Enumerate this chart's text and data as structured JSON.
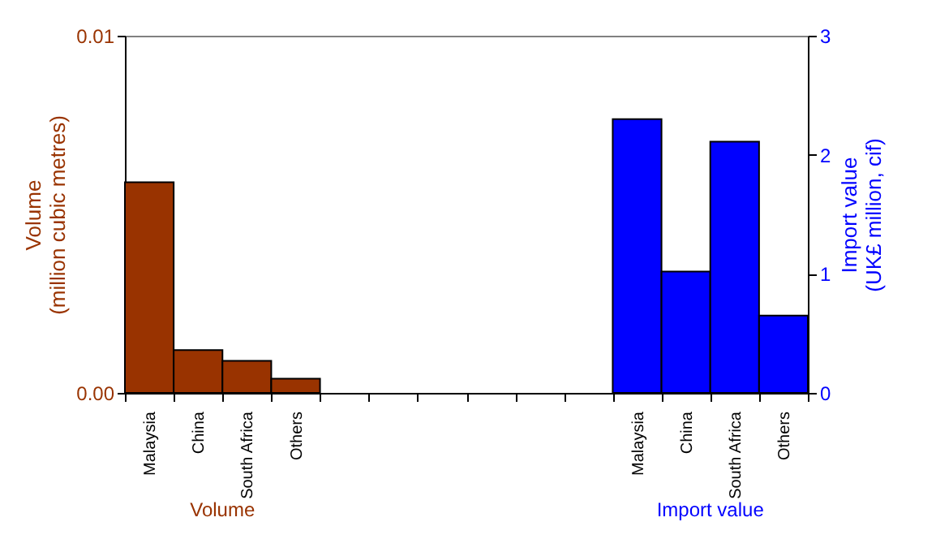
{
  "chart_data": {
    "type": "bar",
    "categories": [
      "Malaysia",
      "China",
      "South Africa",
      "Others",
      null,
      null,
      null,
      null,
      null,
      null,
      "Malaysia",
      "China",
      "South Africa",
      "Others"
    ],
    "ylabel": "Volume\n(million cubic metres)",
    "y2label": "Import value\n(UK£ million, cif)",
    "ylim": [
      0,
      0.01
    ],
    "yticks": [
      {
        "value": 0,
        "label": "0.00"
      },
      0.01
    ],
    "y2lim": [
      0,
      3
    ],
    "y2ticks": [
      0,
      1,
      2,
      3
    ],
    "series": [
      {
        "name": "Volume",
        "color": "#993300",
        "values": [
          0.0059,
          0.0012,
          0.0009,
          0.0004,
          null,
          null,
          null,
          null,
          null,
          null,
          null,
          null,
          null,
          null
        ]
      },
      {
        "name": "Import value",
        "color": "#0000ff",
        "axis": "y2",
        "values": [
          null,
          null,
          null,
          null,
          null,
          null,
          null,
          null,
          null,
          null,
          2.3,
          1.02,
          2.11,
          0.65
        ]
      }
    ]
  }
}
